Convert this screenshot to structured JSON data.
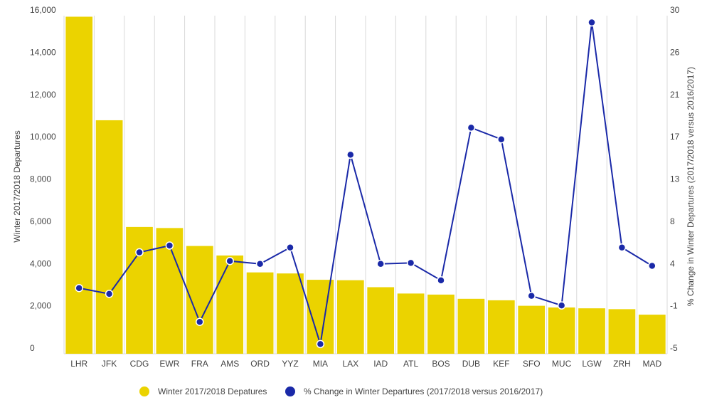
{
  "chart_data": {
    "type": "bar",
    "categories": [
      "LHR",
      "JFK",
      "CDG",
      "EWR",
      "FRA",
      "AMS",
      "ORD",
      "YYZ",
      "MIA",
      "LAX",
      "IAD",
      "ATL",
      "BOS",
      "DUB",
      "KEF",
      "SFO",
      "MUC",
      "LGW",
      "ZRH",
      "MAD"
    ],
    "y_left_label": "Winter 2017/2018 Departures",
    "y_right_label": "% Change in Winter Departures (2017/2018 versus 2016/2017)",
    "y_left_ticks": [
      "0",
      "2,000",
      "4,000",
      "6,000",
      "8,000",
      "10,000",
      "12,000",
      "14,000",
      "16,000"
    ],
    "y_right_ticks": [
      "-5",
      "-1",
      "4",
      "8",
      "13",
      "17",
      "21",
      "26",
      "30"
    ],
    "ylim_left": [
      0,
      16000
    ],
    "ylim_right": [
      -5,
      30
    ],
    "grid": "vertical",
    "legend_position": "bottom",
    "series": [
      {
        "name": "Winter 2017/2018 Depatures",
        "type": "bar",
        "axis": "left",
        "color": "#ebd300",
        "values": [
          15950,
          11050,
          6000,
          5950,
          5100,
          4650,
          3850,
          3800,
          3500,
          3480,
          3150,
          2850,
          2800,
          2600,
          2530,
          2270,
          2190,
          2150,
          2110,
          1850
        ]
      },
      {
        "name": "% Change in Winter Departures (2017/2018 versus 2016/2017)",
        "type": "line",
        "axis": "right",
        "color": "#1a29a8",
        "values": [
          1.8,
          1.2,
          5.5,
          6.2,
          -1.7,
          4.6,
          4.3,
          6.0,
          -4.0,
          15.6,
          4.3,
          4.4,
          2.6,
          18.4,
          17.2,
          1.0,
          0.0,
          29.3,
          6.0,
          4.1
        ]
      }
    ]
  }
}
